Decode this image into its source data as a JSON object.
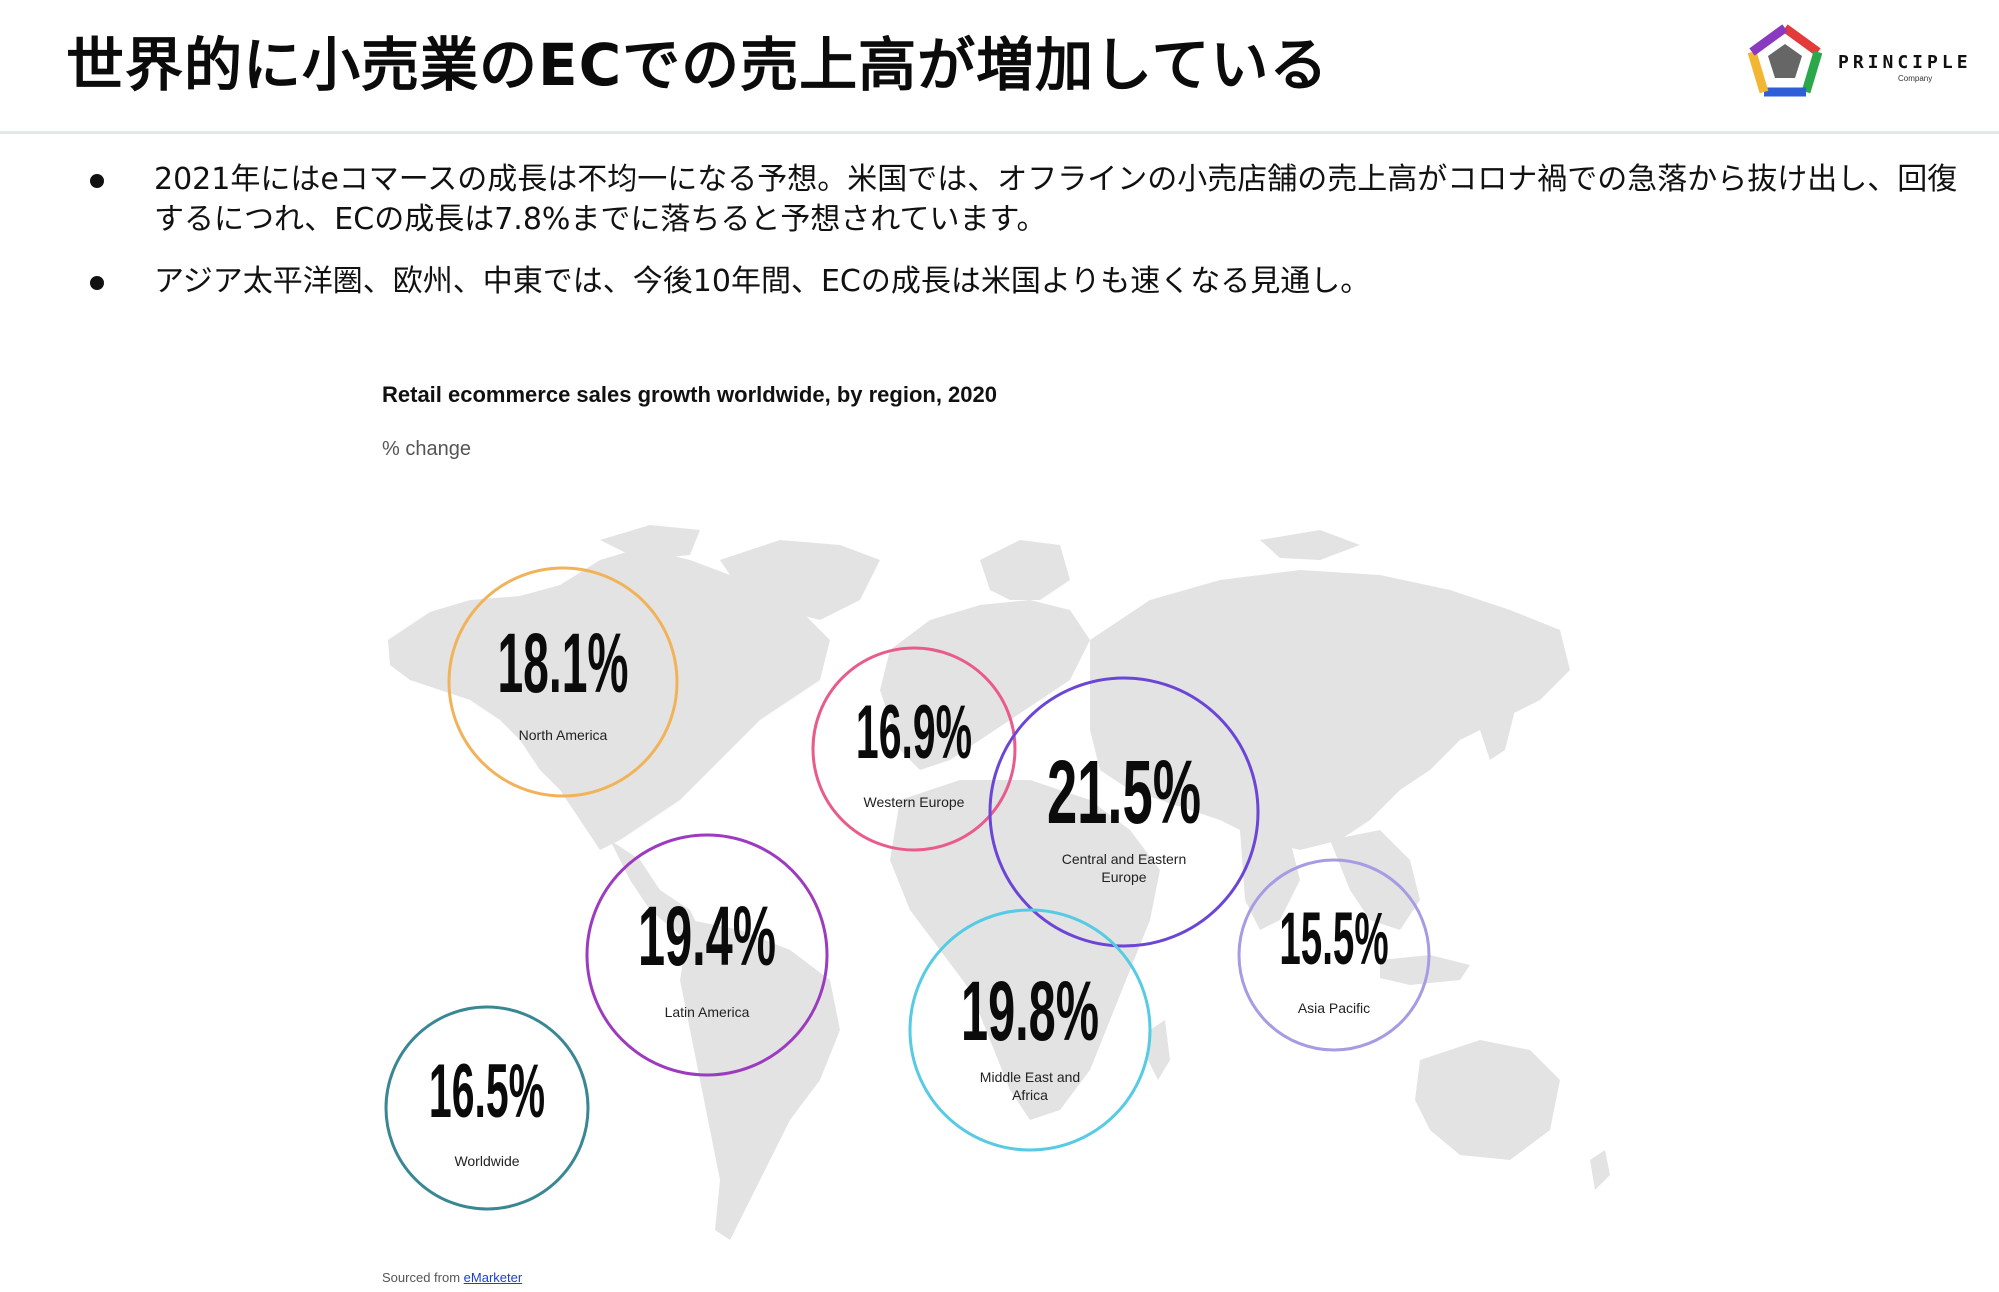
{
  "slide": {
    "title": "世界的に小売業のECでの売上高が増加している",
    "logo": {
      "name": "PRINCIPLE",
      "sub": "Company"
    },
    "bullets": [
      "2021年にはeコマースの成長は不均一になる予想。米国では、オフラインの小売店舗の売上高がコロナ禍での急落から抜け出し、回復するにつれ、ECの成長は7.8%までに落ちると予想されています。",
      "アジア太平洋圏、欧州、中東では、今後10年間、ECの成長は米国よりも速くなる見通し。"
    ]
  },
  "figure": {
    "title": "Retail ecommerce sales growth worldwide, by region, 2020",
    "subtitle": "% change",
    "source_prefix": "Sourced from ",
    "source_link": "eMarketer"
  },
  "regions": [
    {
      "id": "north-america",
      "value": "18.1%",
      "label_lines": [
        "North America"
      ],
      "color": "#f1b35a"
    },
    {
      "id": "western-europe",
      "value": "16.9%",
      "label_lines": [
        "Western Europe"
      ],
      "color": "#e85c8c"
    },
    {
      "id": "central-eastern-europe",
      "value": "21.5%",
      "label_lines": [
        "Central and Eastern",
        "Europe"
      ],
      "color": "#6b46d6"
    },
    {
      "id": "latin-america",
      "value": "19.4%",
      "label_lines": [
        "Latin America"
      ],
      "color": "#9c3bc0"
    },
    {
      "id": "middle-east-africa",
      "value": "19.8%",
      "label_lines": [
        "Middle East and",
        "Africa"
      ],
      "color": "#56cbe3"
    },
    {
      "id": "asia-pacific",
      "value": "15.5%",
      "label_lines": [
        "Asia Pacific"
      ],
      "color": "#a79be3"
    },
    {
      "id": "worldwide",
      "value": "16.5%",
      "label_lines": [
        "Worldwide"
      ],
      "color": "#3a8794"
    }
  ],
  "colors": {
    "map_land": "#e3e3e3",
    "text": "#111111",
    "link": "#1a3fd6"
  }
}
